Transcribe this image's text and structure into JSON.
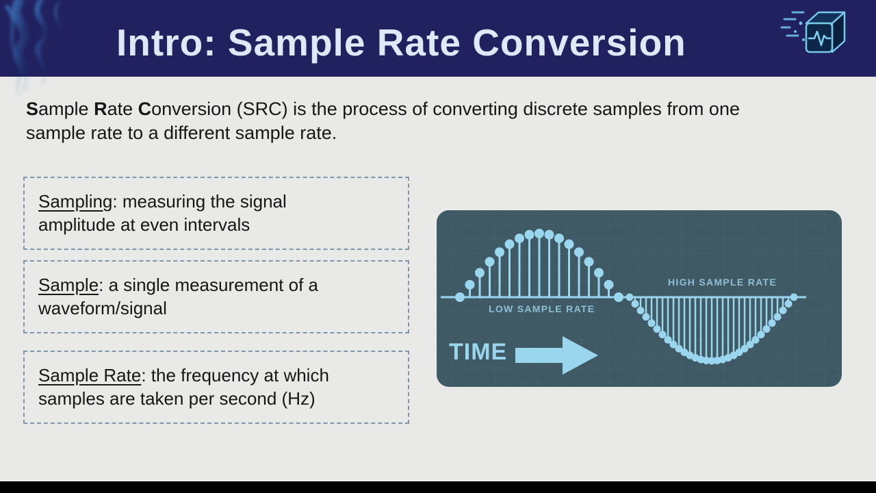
{
  "page": {
    "background": "#e9e9e8",
    "letterbox_color": "#000000"
  },
  "header": {
    "title": "Intro: Sample Rate Conversion",
    "background": "#21215f",
    "title_color": "#dde9f6",
    "logo": "audio-dsp-cube-logo"
  },
  "content": {
    "text_color": "#161616",
    "box_border_color": "#7e95ab",
    "intro_segments": [
      {
        "text": "S",
        "bold": true
      },
      {
        "text": "ample ",
        "bold": false
      },
      {
        "text": "R",
        "bold": true
      },
      {
        "text": "ate ",
        "bold": false
      },
      {
        "text": "C",
        "bold": true
      },
      {
        "text": "onversion (SRC) is the process of converting discrete samples from one\nsample rate to a different sample rate.",
        "bold": false
      }
    ],
    "definitions": [
      {
        "term": "Sampling",
        "definition": ": measuring the signal\namplitude at even intervals"
      },
      {
        "term": "Sample",
        "definition": ": a single measurement of a\nwaveform/signal"
      },
      {
        "term": "Sample Rate",
        "definition": ": the frequency at which\nsamples are taken per second (Hz)"
      }
    ]
  },
  "diagram": {
    "low_label": "LOW SAMPLE RATE",
    "high_label": "HIGH SAMPLE RATE",
    "time_label": "TIME",
    "low_sample_count": 17,
    "high_sample_count": 31,
    "colors": {
      "panel_bg": "#3f5a64",
      "grid": "#4f6d78",
      "accent": "#9bd6ef",
      "label": "#8fc0d6"
    }
  }
}
